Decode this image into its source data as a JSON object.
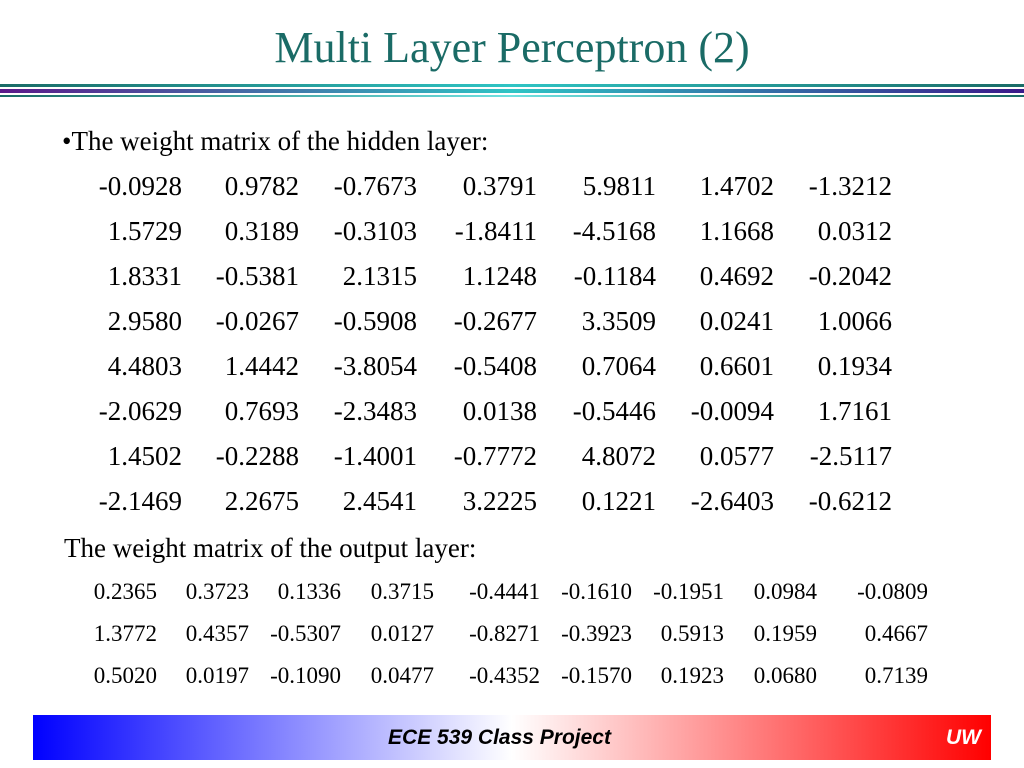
{
  "slide": {
    "title": "Multi Layer Perceptron (2)",
    "hidden_heading": "•The weight matrix of the hidden layer:",
    "output_heading": "The weight matrix of the output layer:"
  },
  "hidden_matrix": [
    [
      "-0.0928",
      "0.9782",
      "-0.7673",
      "0.3791",
      "5.9811",
      "1.4702",
      "-1.3212"
    ],
    [
      "1.5729",
      "0.3189",
      "-0.3103",
      "-1.8411",
      "-4.5168",
      "1.1668",
      "0.0312"
    ],
    [
      "1.8331",
      "-0.5381",
      "2.1315",
      "1.1248",
      "-0.1184",
      "0.4692",
      "-0.2042"
    ],
    [
      "2.9580",
      "-0.0267",
      "-0.5908",
      "-0.2677",
      "3.3509",
      "0.0241",
      "1.0066"
    ],
    [
      "4.4803",
      "1.4442",
      "-3.8054",
      "-0.5408",
      "0.7064",
      "0.6601",
      "0.1934"
    ],
    [
      "-2.0629",
      "0.7693",
      "-2.3483",
      "0.0138",
      "-0.5446",
      "-0.0094",
      "1.7161"
    ],
    [
      "1.4502",
      "-0.2288",
      "-1.4001",
      "-0.7772",
      "4.8072",
      "0.0577",
      "-2.5117"
    ],
    [
      "-2.1469",
      "2.2675",
      "2.4541",
      "3.2225",
      "0.1221",
      "-2.6403",
      "-0.6212"
    ]
  ],
  "output_matrix": [
    [
      "0.2365",
      "0.3723",
      "0.1336",
      "0.3715",
      "-0.4441",
      "-0.1610",
      "-0.1951",
      "0.0984",
      "-0.0809"
    ],
    [
      "1.3772",
      "0.4357",
      "-0.5307",
      "0.0127",
      "-0.8271",
      "-0.3923",
      "0.5913",
      "0.1959",
      "0.4667"
    ],
    [
      "0.5020",
      "0.0197",
      "-0.1090",
      "0.0477",
      "-0.4352",
      "-0.1570",
      "0.1923",
      "0.0680",
      "0.7139"
    ]
  ],
  "footer": {
    "course": "ECE 539 Class Project",
    "org": "UW"
  }
}
